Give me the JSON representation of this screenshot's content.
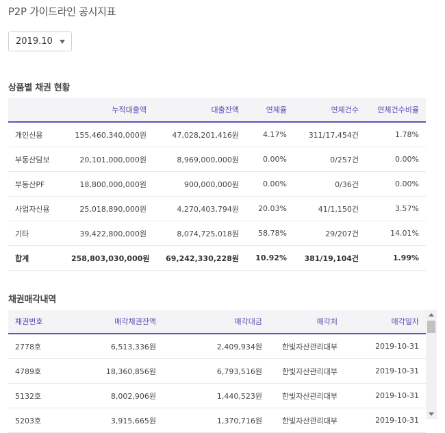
{
  "page": {
    "title": "P2P 가이드라인 공시지표"
  },
  "period_select": {
    "value": "2019.10",
    "icon": "chevron-down-icon"
  },
  "bond_status": {
    "title": "상품별 채권 현황",
    "headers": [
      "",
      "누적대출액",
      "대출잔액",
      "연체율",
      "연체건수",
      "연체건수비율"
    ],
    "rows": [
      [
        "개인신용",
        "155,460,340,000원",
        "47,028,201,416원",
        "4.17%",
        "311/17,454건",
        "1.78%"
      ],
      [
        "부동산담보",
        "20,101,000,000원",
        "8,969,000,000원",
        "0.00%",
        "0/257건",
        "0.00%"
      ],
      [
        "부동산PF",
        "18,800,000,000원",
        "900,000,000원",
        "0.00%",
        "0/36건",
        "0.00%"
      ],
      [
        "사업자신용",
        "25,018,890,000원",
        "4,270,403,794원",
        "20.03%",
        "41/1,150건",
        "3.57%"
      ],
      [
        "기타",
        "39,422,800,000원",
        "8,074,725,018원",
        "58.78%",
        "29/207건",
        "14.01%"
      ]
    ],
    "total": [
      "합계",
      "258,803,030,000원",
      "69,242,330,228원",
      "10.92%",
      "381/19,104건",
      "1.99%"
    ]
  },
  "bond_sales": {
    "title": "채권매각내역",
    "headers": [
      "채권번호",
      "매각채권잔액",
      "매각대금",
      "매각처",
      "매각일자"
    ],
    "rows": [
      [
        "2778호",
        "6,513,336원",
        "2,409,934원",
        "한빛자산관리대부",
        "2019-10-31"
      ],
      [
        "4789호",
        "18,360,856원",
        "6,793,516원",
        "한빛자산관리대부",
        "2019-10-31"
      ],
      [
        "5132호",
        "8,002,906원",
        "1,440,523원",
        "한빛자산관리대부",
        "2019-10-31"
      ],
      [
        "5203호",
        "3,915,665원",
        "1,370,716원",
        "한빛자산관리대부",
        "2019-10-31"
      ]
    ]
  }
}
